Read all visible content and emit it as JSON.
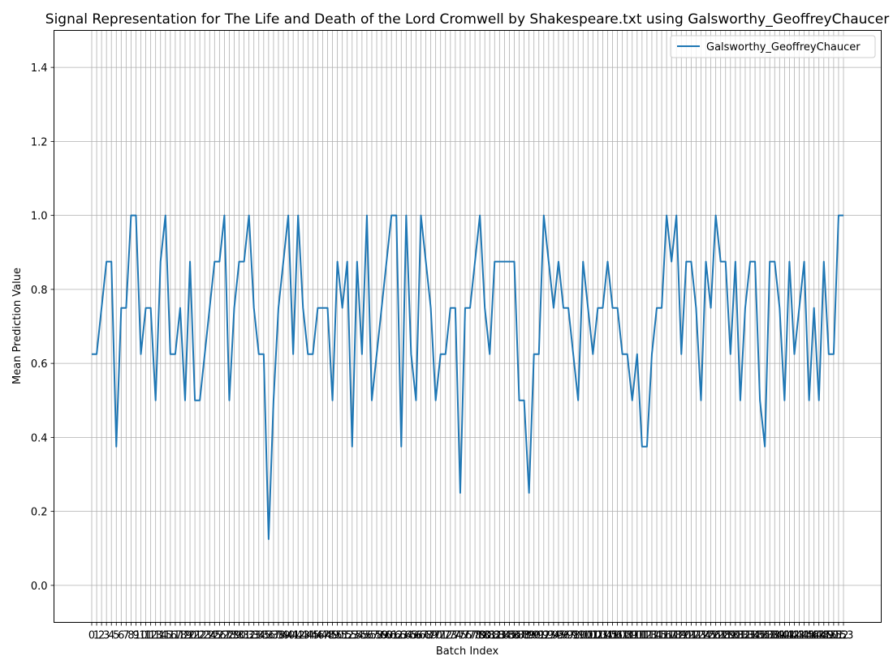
{
  "chart_data": {
    "type": "line",
    "title": "Signal Representation for The Life and Death of the Lord Cromwell by Shakespeare.txt using Galsworthy_GeoffreyChaucer",
    "xlabel": "Batch Index",
    "ylabel": "Mean Prediction Value",
    "ylim": [
      -0.1,
      1.5
    ],
    "yticks": [
      0.0,
      0.2,
      0.4,
      0.6,
      0.8,
      1.0,
      1.2,
      1.4
    ],
    "grid": true,
    "legend_position": "top-right",
    "series": [
      {
        "name": "Galsworthy_GeoffreyChaucer",
        "color": "#1f77b4",
        "values": [
          0.625,
          0.625,
          0.75,
          0.875,
          0.875,
          0.375,
          0.75,
          0.75,
          1.0,
          1.0,
          0.625,
          0.75,
          0.75,
          0.5,
          0.875,
          1.0,
          0.625,
          0.625,
          0.75,
          0.5,
          0.875,
          0.5,
          0.5,
          0.625,
          0.75,
          0.875,
          0.875,
          1.0,
          0.5,
          0.75,
          0.875,
          0.875,
          1.0,
          0.75,
          0.625,
          0.625,
          0.125,
          0.5,
          0.75,
          0.875,
          1.0,
          0.625,
          1.0,
          0.75,
          0.625,
          0.625,
          0.75,
          0.75,
          0.75,
          0.5,
          0.875,
          0.75,
          0.875,
          0.375,
          0.875,
          0.625,
          1.0,
          0.5,
          0.625,
          0.75,
          0.875,
          1.0,
          1.0,
          0.375,
          1.0,
          0.625,
          0.5,
          1.0,
          0.875,
          0.75,
          0.5,
          0.625,
          0.625,
          0.75,
          0.75,
          0.25,
          0.75,
          0.75,
          0.875,
          1.0,
          0.75,
          0.625,
          0.875,
          0.875,
          0.875,
          0.875,
          0.875,
          0.5,
          0.5,
          0.25,
          0.625,
          0.625,
          1.0,
          0.875,
          0.75,
          0.875,
          0.75,
          0.75,
          0.625,
          0.5,
          0.875,
          0.75,
          0.625,
          0.75,
          0.75,
          0.875,
          0.75,
          0.75,
          0.625,
          0.625,
          0.5,
          0.625,
          0.375,
          0.375,
          0.625,
          0.75,
          0.75,
          1.0,
          0.875,
          1.0,
          0.625,
          0.875,
          0.875,
          0.75,
          0.5,
          0.875,
          0.75,
          1.0,
          0.875,
          0.875,
          0.625,
          0.875,
          0.5,
          0.75,
          0.875,
          0.875,
          0.5,
          0.375,
          0.875,
          0.875,
          0.75,
          0.5,
          0.875,
          0.625,
          0.75,
          0.875,
          0.5,
          0.75,
          0.5,
          0.875,
          0.625,
          0.625,
          1.0,
          1.0
        ]
      }
    ]
  }
}
